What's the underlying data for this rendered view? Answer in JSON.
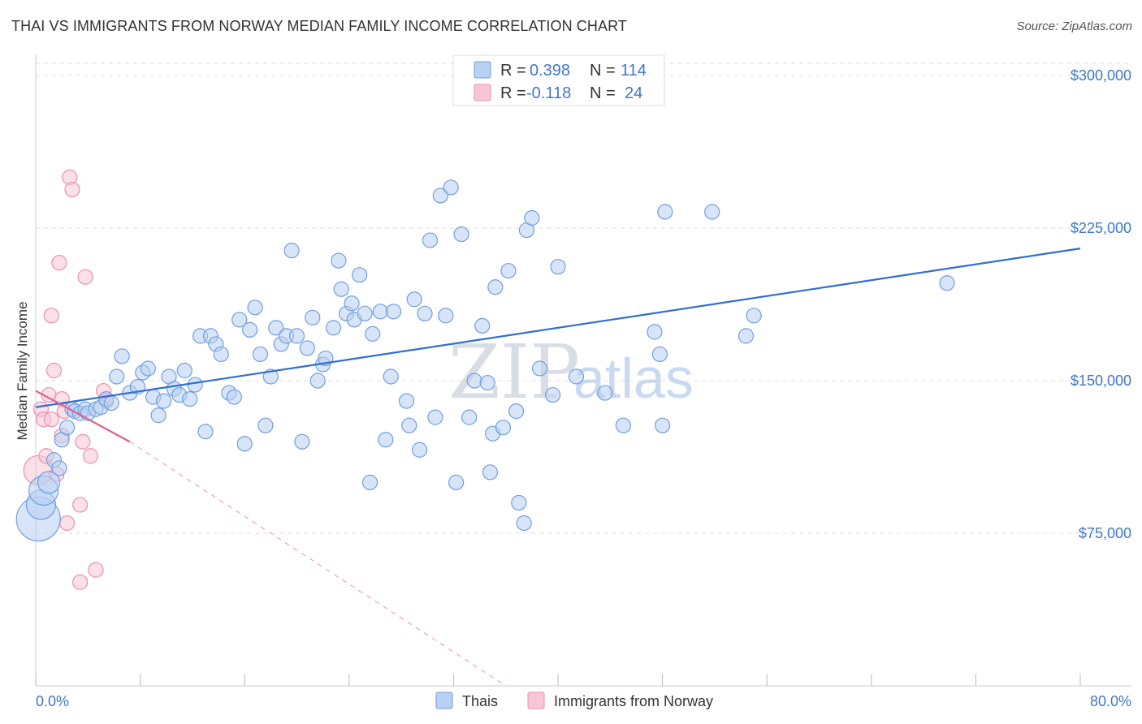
{
  "header": {
    "title": "THAI VS IMMIGRANTS FROM NORWAY MEDIAN FAMILY INCOME CORRELATION CHART",
    "source": "Source: ZipAtlas.com"
  },
  "watermark": {
    "part1": "ZIP",
    "part2": "atlas"
  },
  "colors": {
    "blue": "#6f9fe0",
    "blue_line": "#2f6fcf",
    "blue_fill": "#b8d0f2",
    "pink": "#ec8fb0",
    "pink_line": "#e0608e",
    "pink_fill": "#f8c6d6",
    "grid": "#dddddd",
    "tick_text": "#3f78c8"
  },
  "legend": {
    "rows": [
      {
        "r_label": "R =",
        "r_value": "0.398",
        "n_label": "N =",
        "n_value": "114"
      },
      {
        "r_label": "R =",
        "r_value": "-0.118",
        "n_label": "N =",
        "n_value": "24"
      }
    ]
  },
  "bottom_legend": {
    "series1": "Thais",
    "series2": "Immigrants from Norway"
  },
  "chart_data": {
    "type": "scatter",
    "title": "THAI VS IMMIGRANTS FROM NORWAY MEDIAN FAMILY INCOME CORRELATION CHART",
    "xlabel": "",
    "ylabel": "Median Family Income",
    "xlim": [
      0,
      80
    ],
    "ylim": [
      0,
      310000
    ],
    "x_tick_labels": [
      "0.0%",
      "80.0%"
    ],
    "y_ticks": [
      75000,
      150000,
      225000,
      300000
    ],
    "y_tick_labels": [
      "$75,000",
      "$150,000",
      "$225,000",
      "$300,000"
    ],
    "series": [
      {
        "name": "Thais",
        "r": 0.398,
        "n": 114,
        "trend": {
          "x": [
            0,
            80
          ],
          "y": [
            137000,
            215000
          ]
        },
        "points": [
          [
            0.2,
            82000,
            3
          ],
          [
            0.4,
            89000,
            2
          ],
          [
            0.6,
            96000,
            2
          ],
          [
            1.0,
            100000,
            1.5
          ],
          [
            1.4,
            111000,
            1
          ],
          [
            1.8,
            107000,
            1
          ],
          [
            2.0,
            121000,
            1
          ],
          [
            2.4,
            127000,
            1
          ],
          [
            2.8,
            136000,
            1
          ],
          [
            3.0,
            135000,
            1
          ],
          [
            3.4,
            134000,
            1
          ],
          [
            3.8,
            136000,
            1
          ],
          [
            4.0,
            134000,
            1
          ],
          [
            4.6,
            136000,
            1
          ],
          [
            5.0,
            137000,
            1
          ],
          [
            5.4,
            141000,
            1
          ],
          [
            5.8,
            139000,
            1
          ],
          [
            6.2,
            152000,
            1
          ],
          [
            6.6,
            162000,
            1
          ],
          [
            7.2,
            144000,
            1
          ],
          [
            7.8,
            147000,
            1
          ],
          [
            8.2,
            154000,
            1
          ],
          [
            8.6,
            156000,
            1
          ],
          [
            9.0,
            142000,
            1
          ],
          [
            9.4,
            133000,
            1
          ],
          [
            9.8,
            140000,
            1
          ],
          [
            10.2,
            152000,
            1
          ],
          [
            10.6,
            146000,
            1
          ],
          [
            11.0,
            143000,
            1
          ],
          [
            11.4,
            155000,
            1
          ],
          [
            11.8,
            141000,
            1
          ],
          [
            12.2,
            148000,
            1
          ],
          [
            12.6,
            172000,
            1
          ],
          [
            13.0,
            125000,
            1
          ],
          [
            13.4,
            172000,
            1
          ],
          [
            13.8,
            168000,
            1
          ],
          [
            14.2,
            163000,
            1
          ],
          [
            14.8,
            144000,
            1
          ],
          [
            15.2,
            142000,
            1
          ],
          [
            15.6,
            180000,
            1
          ],
          [
            16.0,
            119000,
            1
          ],
          [
            16.4,
            175000,
            1
          ],
          [
            16.8,
            186000,
            1
          ],
          [
            17.2,
            163000,
            1
          ],
          [
            17.6,
            128000,
            1
          ],
          [
            18.0,
            152000,
            1
          ],
          [
            18.4,
            176000,
            1
          ],
          [
            18.8,
            168000,
            1
          ],
          [
            19.2,
            172000,
            1
          ],
          [
            19.6,
            214000,
            1
          ],
          [
            20.0,
            172000,
            1
          ],
          [
            20.4,
            120000,
            1
          ],
          [
            20.8,
            166000,
            1
          ],
          [
            21.2,
            181000,
            1
          ],
          [
            21.6,
            150000,
            1
          ],
          [
            22.0,
            158000,
            1
          ],
          [
            22.2,
            161000,
            1
          ],
          [
            22.8,
            176000,
            1
          ],
          [
            23.2,
            209000,
            1
          ],
          [
            23.4,
            195000,
            1
          ],
          [
            23.8,
            183000,
            1
          ],
          [
            24.2,
            188000,
            1
          ],
          [
            24.4,
            180000,
            1
          ],
          [
            24.8,
            202000,
            1
          ],
          [
            25.2,
            183000,
            1
          ],
          [
            25.6,
            100000,
            1
          ],
          [
            25.8,
            173000,
            1
          ],
          [
            26.4,
            184000,
            1
          ],
          [
            26.8,
            121000,
            1
          ],
          [
            27.2,
            152000,
            1
          ],
          [
            27.4,
            184000,
            1
          ],
          [
            28.4,
            140000,
            1
          ],
          [
            28.6,
            128000,
            1
          ],
          [
            29.0,
            190000,
            1
          ],
          [
            29.4,
            116000,
            1
          ],
          [
            29.8,
            183000,
            1
          ],
          [
            30.2,
            219000,
            1
          ],
          [
            30.6,
            132000,
            1
          ],
          [
            31.0,
            241000,
            1
          ],
          [
            31.4,
            182000,
            1
          ],
          [
            31.8,
            245000,
            1
          ],
          [
            32.2,
            100000,
            1
          ],
          [
            32.6,
            222000,
            1
          ],
          [
            33.2,
            132000,
            1
          ],
          [
            33.6,
            150000,
            1
          ],
          [
            34.2,
            177000,
            1
          ],
          [
            34.6,
            149000,
            1
          ],
          [
            34.8,
            105000,
            1
          ],
          [
            35.0,
            124000,
            1
          ],
          [
            35.2,
            196000,
            1
          ],
          [
            35.8,
            127000,
            1
          ],
          [
            36.2,
            204000,
            1
          ],
          [
            36.8,
            135000,
            1
          ],
          [
            37.0,
            90000,
            1
          ],
          [
            37.4,
            80000,
            1
          ],
          [
            37.6,
            224000,
            1
          ],
          [
            38.0,
            230000,
            1
          ],
          [
            38.6,
            156000,
            1
          ],
          [
            39.6,
            143000,
            1
          ],
          [
            40.0,
            206000,
            1
          ],
          [
            41.4,
            152000,
            1
          ],
          [
            43.6,
            144000,
            1
          ],
          [
            45.0,
            128000,
            1
          ],
          [
            47.4,
            174000,
            1
          ],
          [
            47.8,
            163000,
            1
          ],
          [
            48.0,
            128000,
            1
          ],
          [
            48.2,
            233000,
            1
          ],
          [
            51.8,
            233000,
            1
          ],
          [
            54.4,
            172000,
            1
          ],
          [
            55.0,
            182000,
            1
          ],
          [
            69.8,
            198000,
            1
          ]
        ]
      },
      {
        "name": "Immigrants from Norway",
        "r": -0.118,
        "n": 24,
        "trend": {
          "x": [
            0,
            7.2
          ],
          "y": [
            145000,
            120000
          ]
        },
        "trend_dashed": {
          "x": [
            7.2,
            36.0
          ],
          "y": [
            120000,
            0
          ]
        },
        "points": [
          [
            0.2,
            106000,
            2
          ],
          [
            0.4,
            136000,
            1
          ],
          [
            0.6,
            131000,
            1
          ],
          [
            0.8,
            113000,
            1
          ],
          [
            1.0,
            143000,
            1
          ],
          [
            1.2,
            131000,
            1
          ],
          [
            1.2,
            182000,
            1
          ],
          [
            1.4,
            155000,
            1
          ],
          [
            1.6,
            104000,
            1
          ],
          [
            1.8,
            208000,
            1
          ],
          [
            2.0,
            141000,
            1
          ],
          [
            2.0,
            123000,
            1
          ],
          [
            2.2,
            135000,
            1
          ],
          [
            2.4,
            80000,
            1
          ],
          [
            2.6,
            250000,
            1
          ],
          [
            2.8,
            244000,
            1
          ],
          [
            3.4,
            51000,
            1
          ],
          [
            3.4,
            89000,
            1
          ],
          [
            3.6,
            120000,
            1
          ],
          [
            3.8,
            201000,
            1
          ],
          [
            4.2,
            113000,
            1
          ],
          [
            4.6,
            57000,
            1
          ],
          [
            5.2,
            145000,
            1
          ],
          [
            5.4,
            140000,
            1
          ]
        ]
      }
    ]
  }
}
